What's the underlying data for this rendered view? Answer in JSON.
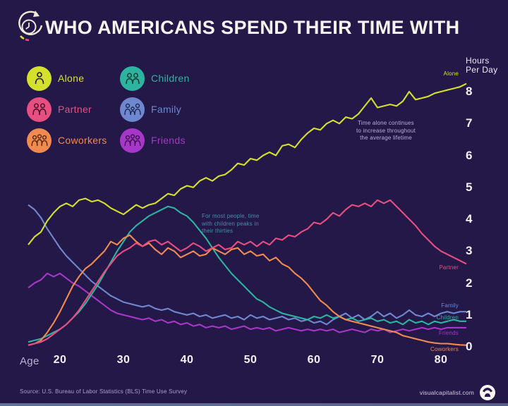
{
  "header": {
    "title": "WHO AMERICANS SPEND THEIR TIME WITH"
  },
  "legend": {
    "items": [
      {
        "id": "alone",
        "label": "Alone",
        "color": "#d3e02c",
        "icon": "person-icon"
      },
      {
        "id": "children",
        "label": "Children",
        "color": "#2db4a0",
        "icon": "children-icon"
      },
      {
        "id": "partner",
        "label": "Partner",
        "color": "#e84f81",
        "icon": "couple-icon"
      },
      {
        "id": "family",
        "label": "Family",
        "color": "#6f87cf",
        "icon": "family-icon"
      },
      {
        "id": "coworkers",
        "label": "Coworkers",
        "color": "#f18a4e",
        "icon": "coworkers-icon"
      },
      {
        "id": "friends",
        "label": "Friends",
        "color": "#a637c8",
        "icon": "friends-icon"
      }
    ]
  },
  "axes": {
    "x_label": "Age",
    "x_ticks": [
      20,
      30,
      40,
      50,
      60,
      70,
      80
    ],
    "y_label": "Hours\nPer Day",
    "y_ticks": [
      8,
      7,
      6,
      5,
      4,
      3,
      2,
      1,
      0
    ]
  },
  "annotations": [
    {
      "id": "alone-note",
      "text": "Time alone continues\nto increase throughout\nthe average lifetime",
      "color": "#b6b0d4"
    },
    {
      "id": "children-note",
      "text": "For most people, time\nwith children peaks in\ntheir thirties",
      "color": "#4b8fa9"
    }
  ],
  "footer": {
    "source": "Source: U.S. Bureau of Labor Statistics (BLS) Time Use Survey",
    "site": "visualcapitalist.com"
  },
  "chart_data": {
    "type": "line",
    "title": "WHO AMERICANS SPEND THEIR TIME WITH",
    "xlabel": "Age",
    "ylabel": "Hours Per Day",
    "x_range": [
      15,
      84
    ],
    "ylim": [
      0,
      8.5
    ],
    "grid": false,
    "legend_position": "top-left",
    "x": [
      15,
      16,
      17,
      18,
      19,
      20,
      21,
      22,
      23,
      24,
      25,
      26,
      27,
      28,
      29,
      30,
      31,
      32,
      33,
      34,
      35,
      36,
      37,
      38,
      39,
      40,
      41,
      42,
      43,
      44,
      45,
      46,
      47,
      48,
      49,
      50,
      51,
      52,
      53,
      54,
      55,
      56,
      57,
      58,
      59,
      60,
      61,
      62,
      63,
      64,
      65,
      66,
      67,
      68,
      69,
      70,
      71,
      72,
      73,
      74,
      75,
      76,
      77,
      78,
      79,
      80,
      81,
      82,
      83,
      84
    ],
    "series": [
      {
        "name": "Friends",
        "end_label": "Friends",
        "color": "#a637c8",
        "values": [
          1.85,
          2.0,
          2.1,
          2.3,
          2.2,
          2.3,
          2.15,
          2.0,
          1.9,
          1.75,
          1.6,
          1.45,
          1.3,
          1.15,
          1.05,
          1.0,
          0.95,
          0.9,
          0.85,
          0.9,
          0.8,
          0.85,
          0.75,
          0.8,
          0.7,
          0.75,
          0.65,
          0.7,
          0.6,
          0.65,
          0.6,
          0.65,
          0.55,
          0.6,
          0.65,
          0.55,
          0.6,
          0.55,
          0.6,
          0.5,
          0.55,
          0.6,
          0.55,
          0.5,
          0.55,
          0.5,
          0.55,
          0.5,
          0.55,
          0.45,
          0.5,
          0.55,
          0.5,
          0.45,
          0.55,
          0.5,
          0.55,
          0.45,
          0.5,
          0.55,
          0.5,
          0.55,
          0.6,
          0.55,
          0.6,
          0.55,
          0.6,
          0.6,
          0.6,
          0.6
        ]
      },
      {
        "name": "Family",
        "end_label": "Family",
        "color": "#6f87cf",
        "values": [
          4.45,
          4.3,
          4.05,
          3.7,
          3.4,
          3.1,
          2.85,
          2.65,
          2.45,
          2.25,
          2.05,
          1.9,
          1.75,
          1.6,
          1.5,
          1.4,
          1.35,
          1.3,
          1.25,
          1.3,
          1.2,
          1.15,
          1.2,
          1.1,
          1.05,
          1.0,
          1.05,
          0.95,
          1.0,
          0.9,
          0.95,
          1.0,
          0.9,
          0.95,
          0.85,
          1.0,
          0.9,
          0.95,
          0.85,
          0.9,
          0.95,
          0.85,
          0.9,
          0.8,
          0.85,
          0.75,
          0.8,
          0.7,
          0.85,
          0.95,
          1.05,
          0.9,
          1.0,
          0.85,
          0.95,
          1.1,
          0.95,
          1.05,
          0.9,
          1.0,
          1.15,
          1.0,
          0.95,
          1.05,
          0.95,
          1.05,
          1.1,
          1.05,
          1.1,
          1.1
        ]
      },
      {
        "name": "Children",
        "end_label": "Children",
        "color": "#2db4a0",
        "values": [
          0.15,
          0.2,
          0.25,
          0.35,
          0.45,
          0.55,
          0.7,
          0.9,
          1.1,
          1.35,
          1.65,
          1.95,
          2.3,
          2.65,
          3.0,
          3.3,
          3.6,
          3.8,
          3.95,
          4.1,
          4.2,
          4.3,
          4.4,
          4.35,
          4.2,
          4.1,
          3.9,
          3.65,
          3.4,
          3.1,
          2.8,
          2.55,
          2.3,
          2.1,
          1.9,
          1.7,
          1.5,
          1.4,
          1.25,
          1.15,
          1.05,
          1.0,
          0.95,
          0.9,
          0.85,
          0.95,
          0.9,
          1.0,
          0.9,
          0.95,
          0.85,
          0.9,
          0.8,
          0.85,
          0.9,
          0.8,
          0.85,
          0.75,
          0.8,
          0.7,
          0.85,
          0.75,
          0.8,
          0.7,
          0.8,
          0.75,
          0.8,
          0.85,
          0.8,
          0.8
        ]
      },
      {
        "name": "Coworkers",
        "end_label": "Coworkers",
        "color": "#f18a4e",
        "values": [
          0.05,
          0.1,
          0.2,
          0.45,
          0.75,
          1.1,
          1.5,
          1.9,
          2.2,
          2.45,
          2.6,
          2.8,
          3.0,
          3.3,
          3.2,
          3.4,
          3.5,
          3.3,
          3.15,
          3.25,
          3.05,
          2.9,
          3.1,
          3.0,
          2.8,
          2.9,
          3.0,
          2.85,
          2.9,
          3.1,
          3.0,
          2.9,
          3.05,
          3.1,
          2.9,
          3.0,
          2.85,
          2.9,
          2.7,
          2.8,
          2.6,
          2.5,
          2.3,
          2.15,
          1.95,
          1.7,
          1.45,
          1.3,
          1.1,
          0.95,
          0.85,
          0.8,
          0.75,
          0.7,
          0.65,
          0.6,
          0.55,
          0.5,
          0.45,
          0.35,
          0.3,
          0.25,
          0.2,
          0.15,
          0.12,
          0.1,
          0.1,
          0.08,
          0.06,
          0.05
        ]
      },
      {
        "name": "Partner",
        "end_label": "Partner",
        "color": "#e84f81",
        "values": [
          0.05,
          0.1,
          0.15,
          0.25,
          0.4,
          0.55,
          0.7,
          0.9,
          1.15,
          1.45,
          1.75,
          2.05,
          2.35,
          2.6,
          2.85,
          3.0,
          3.1,
          3.25,
          3.15,
          3.3,
          3.35,
          3.2,
          3.3,
          3.15,
          3.0,
          3.1,
          3.25,
          3.15,
          3.0,
          3.1,
          3.2,
          3.05,
          3.1,
          3.3,
          3.2,
          3.3,
          3.15,
          3.3,
          3.2,
          3.4,
          3.35,
          3.5,
          3.45,
          3.6,
          3.7,
          3.9,
          3.85,
          4.0,
          4.2,
          4.1,
          4.3,
          4.45,
          4.4,
          4.5,
          4.4,
          4.6,
          4.5,
          4.6,
          4.4,
          4.2,
          4.0,
          3.8,
          3.55,
          3.35,
          3.15,
          3.0,
          2.9,
          2.8,
          2.7,
          2.6
        ]
      },
      {
        "name": "Alone",
        "end_label": "Alone",
        "color": "#d3e02c",
        "values": [
          3.2,
          3.45,
          3.6,
          3.95,
          4.2,
          4.4,
          4.5,
          4.4,
          4.6,
          4.65,
          4.55,
          4.6,
          4.5,
          4.35,
          4.25,
          4.15,
          4.3,
          4.45,
          4.35,
          4.45,
          4.5,
          4.65,
          4.8,
          4.75,
          4.95,
          5.05,
          5.0,
          5.2,
          5.3,
          5.2,
          5.35,
          5.4,
          5.55,
          5.75,
          5.7,
          5.9,
          5.85,
          6.0,
          6.1,
          6.0,
          6.3,
          6.35,
          6.25,
          6.5,
          6.7,
          6.85,
          6.8,
          7.0,
          7.1,
          7.0,
          7.2,
          7.15,
          7.3,
          7.55,
          7.8,
          7.5,
          7.55,
          7.6,
          7.55,
          7.7,
          8.0,
          7.75,
          7.8,
          7.85,
          7.95,
          8.0,
          8.05,
          8.1,
          8.15,
          8.25
        ]
      }
    ]
  }
}
